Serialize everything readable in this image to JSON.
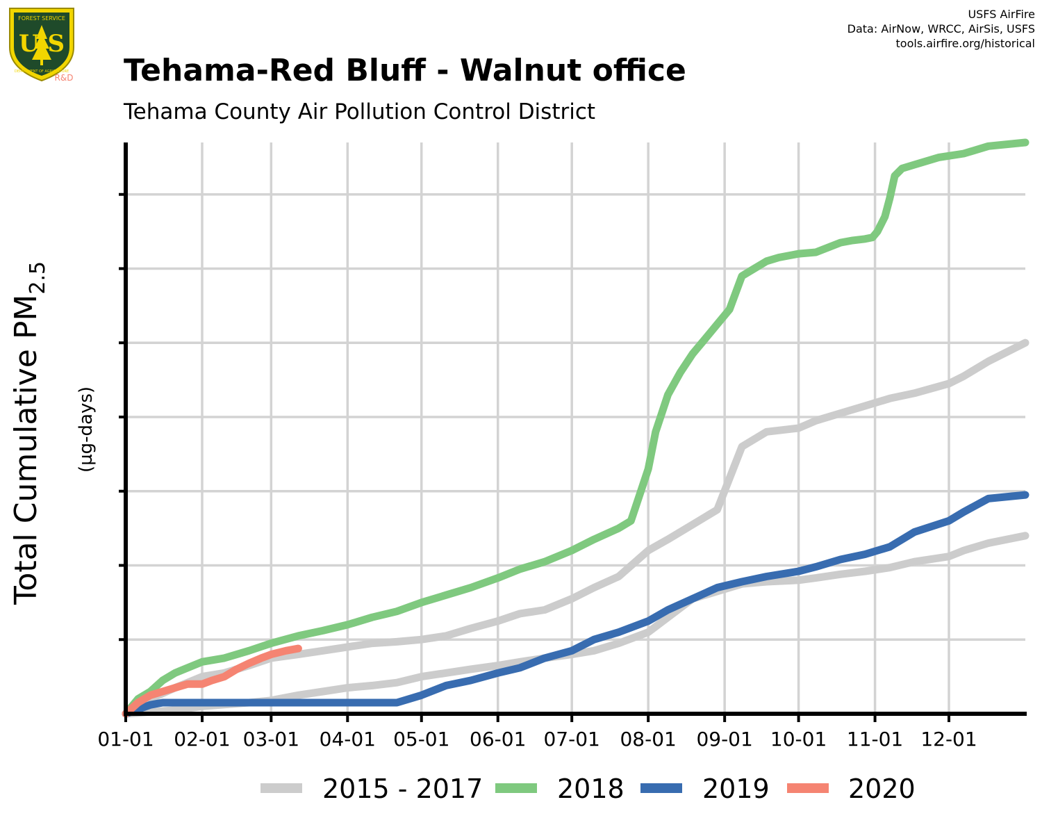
{
  "logo": {
    "top_text": "FOREST SERVICE",
    "letters": "U S",
    "bottom_text": "DEPARTMENT OF AGRICULTURE",
    "badge": "R&D"
  },
  "credits": [
    "USFS AirFire",
    "Data: AirNow, WRCC, AirSis, USFS",
    "tools.airfire.org/historical"
  ],
  "title": "Tehama-Red Bluff - Walnut office",
  "subtitle": "Tehama County Air Pollution Control District",
  "colors": {
    "2015-2017": "#cccccc",
    "2018": "#7fc97f",
    "2019": "#386cb0",
    "2020": "#f58472",
    "grid": "#d3d3d3",
    "axis": "#000000"
  },
  "chart_data": {
    "type": "line",
    "ylabel": "Total Cumulative PM",
    "ylabel_subscript": "2.5",
    "yunit": "(µg-days)",
    "x_tick_labels": [
      "01-01",
      "02-01",
      "03-01",
      "04-01",
      "05-01",
      "06-01",
      "07-01",
      "08-01",
      "09-01",
      "10-01",
      "11-01",
      "12-01"
    ],
    "x_ticks_day": [
      0,
      31,
      59,
      90,
      120,
      151,
      181,
      212,
      243,
      273,
      304,
      334
    ],
    "xlim_day": [
      0,
      365
    ],
    "ylim": [
      0,
      7.7
    ],
    "y_grid": [
      1,
      2,
      3,
      4,
      5,
      6,
      7
    ],
    "y_tick_labels": "none",
    "grid": true,
    "legend": "bottom",
    "series": [
      {
        "name": "2015 - 2017",
        "color_key": "2015-2017",
        "x": [
          0,
          10,
          20,
          31,
          40,
          50,
          59,
          70,
          80,
          90,
          100,
          110,
          120,
          130,
          140,
          151,
          160,
          170,
          181,
          190,
          200,
          212,
          220,
          230,
          240,
          250,
          260,
          273,
          280,
          290,
          300,
          310,
          320,
          334,
          340,
          350,
          365
        ],
        "y": [
          0.0,
          0.2,
          0.35,
          0.5,
          0.55,
          0.65,
          0.75,
          0.8,
          0.85,
          0.9,
          0.95,
          0.97,
          1.0,
          1.05,
          1.15,
          1.25,
          1.35,
          1.4,
          1.55,
          1.7,
          1.85,
          2.2,
          2.35,
          2.55,
          2.75,
          3.6,
          3.8,
          3.85,
          3.95,
          4.05,
          4.15,
          4.25,
          4.32,
          4.45,
          4.55,
          4.75,
          5.0
        ]
      },
      {
        "name": "2015 - 2017",
        "color_key": "2015-2017",
        "x": [
          0,
          20,
          31,
          50,
          59,
          70,
          80,
          90,
          100,
          110,
          120,
          130,
          140,
          151,
          160,
          170,
          181,
          190,
          200,
          212,
          220,
          230,
          240,
          250,
          260,
          273,
          280,
          290,
          300,
          310,
          320,
          334,
          340,
          350,
          365
        ],
        "y": [
          0.0,
          0.05,
          0.1,
          0.15,
          0.18,
          0.25,
          0.3,
          0.35,
          0.38,
          0.42,
          0.5,
          0.55,
          0.6,
          0.65,
          0.7,
          0.75,
          0.8,
          0.85,
          0.95,
          1.1,
          1.3,
          1.55,
          1.65,
          1.75,
          1.78,
          1.8,
          1.83,
          1.88,
          1.92,
          1.97,
          2.05,
          2.12,
          2.2,
          2.3,
          2.4
        ]
      },
      {
        "name": "2018",
        "color_key": "2018",
        "x": [
          0,
          5,
          10,
          15,
          20,
          31,
          40,
          50,
          59,
          70,
          80,
          90,
          100,
          110,
          120,
          130,
          140,
          151,
          160,
          170,
          181,
          190,
          200,
          205,
          208,
          212,
          215,
          220,
          225,
          230,
          235,
          240,
          245,
          250,
          255,
          260,
          265,
          273,
          280,
          290,
          295,
          300,
          303,
          305,
          308,
          310,
          312,
          315,
          320,
          330,
          340,
          350,
          365
        ],
        "y": [
          0.0,
          0.2,
          0.3,
          0.45,
          0.55,
          0.7,
          0.75,
          0.85,
          0.95,
          1.05,
          1.12,
          1.2,
          1.3,
          1.38,
          1.5,
          1.6,
          1.7,
          1.83,
          1.95,
          2.05,
          2.2,
          2.35,
          2.5,
          2.6,
          2.9,
          3.3,
          3.8,
          4.3,
          4.6,
          4.85,
          5.05,
          5.25,
          5.45,
          5.9,
          6.0,
          6.1,
          6.15,
          6.2,
          6.22,
          6.35,
          6.38,
          6.4,
          6.42,
          6.5,
          6.7,
          6.95,
          7.25,
          7.35,
          7.4,
          7.5,
          7.55,
          7.65,
          7.7
        ]
      },
      {
        "name": "2019",
        "color_key": "2019",
        "x": [
          0,
          10,
          15,
          20,
          31,
          40,
          59,
          90,
          110,
          120,
          130,
          140,
          151,
          160,
          170,
          181,
          190,
          200,
          212,
          220,
          230,
          240,
          250,
          260,
          273,
          280,
          290,
          300,
          310,
          320,
          334,
          340,
          350,
          365
        ],
        "y": [
          0.0,
          0.12,
          0.15,
          0.15,
          0.15,
          0.15,
          0.15,
          0.15,
          0.15,
          0.25,
          0.38,
          0.45,
          0.55,
          0.62,
          0.75,
          0.85,
          1.0,
          1.1,
          1.25,
          1.4,
          1.55,
          1.7,
          1.78,
          1.85,
          1.92,
          1.98,
          2.08,
          2.15,
          2.25,
          2.45,
          2.6,
          2.72,
          2.9,
          2.95
        ]
      },
      {
        "name": "2020",
        "color_key": "2020",
        "x": [
          0,
          5,
          10,
          15,
          20,
          25,
          31,
          35,
          40,
          45,
          50,
          55,
          59,
          65,
          70
        ],
        "y": [
          0.0,
          0.15,
          0.25,
          0.3,
          0.35,
          0.4,
          0.4,
          0.45,
          0.5,
          0.6,
          0.68,
          0.75,
          0.8,
          0.85,
          0.88
        ]
      }
    ],
    "legend_entries": [
      {
        "label": "2015 - 2017",
        "color_key": "2015-2017"
      },
      {
        "label": "2018",
        "color_key": "2018"
      },
      {
        "label": "2019",
        "color_key": "2019"
      },
      {
        "label": "2020",
        "color_key": "2020"
      }
    ]
  }
}
